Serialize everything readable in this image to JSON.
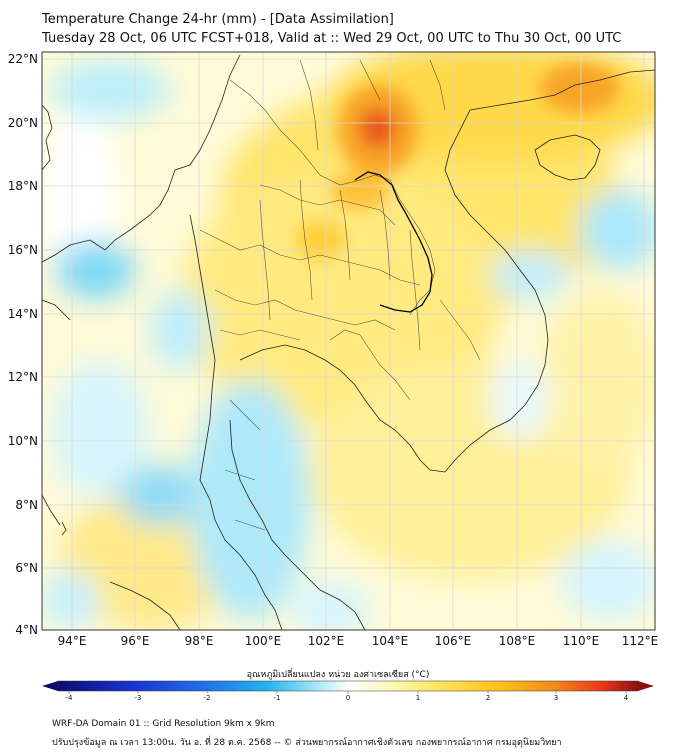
{
  "title": {
    "line1": "Temperature Change 24-hr (mm) - [Data Assimilation]",
    "line2": "Tuesday 28 Oct, 06 UTC FCST+018, Valid at :: Wed 29 Oct, 00 UTC to Thu 30 Oct, 00 UTC"
  },
  "lat_labels": [
    "22°N",
    "20°N",
    "18°N",
    "16°N",
    "14°N",
    "12°N",
    "10°N",
    "8°N",
    "6°N",
    "4°N"
  ],
  "lon_labels": [
    "94°E",
    "96°E",
    "98°E",
    "100°E",
    "102°E",
    "104°E",
    "106°E",
    "108°E",
    "110°E",
    "112°E"
  ],
  "colorbar": {
    "title": "อุณหภูมิเปลี่ยนแปลง หน่วย องศาเซลเซียส (°C)",
    "ticks": [
      "-4",
      "-3",
      "-2",
      "-1",
      "0",
      "1",
      "2",
      "3",
      "4"
    ],
    "colors": [
      "#0a0f6e",
      "#1a2fd0",
      "#1f6fe8",
      "#22b4ee",
      "#9fe3f7",
      "#ffffff",
      "#fff7b0",
      "#ffe45a",
      "#ffc21c",
      "#f5861a",
      "#e8351a",
      "#8c1010"
    ]
  },
  "footer": {
    "line1": "WRF-DA Domain 01 :: Grid Resolution 9km x 9km",
    "line2": "ปรับปรุงข้อมูล ณ เวลา 13:00น. วัน อ. ที่ 28 ต.ค. 2568 -- © ส่วนพยากรณ์อากาศเชิงตัวเลข กองพยากรณ์อากาศ กรมอุตุนิยมวิทยา"
  },
  "icons": {
    "colorbar_arrows": "triangle-arrow-icon"
  }
}
